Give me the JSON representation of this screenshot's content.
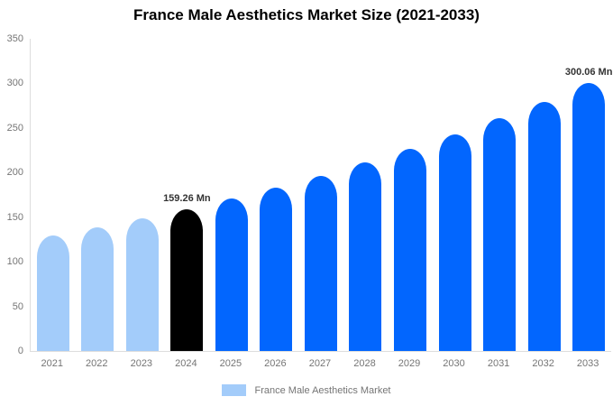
{
  "chart_data": {
    "type": "bar",
    "title": "France Male Aesthetics Market Size (2021-2033)",
    "categories": [
      "2021",
      "2022",
      "2023",
      "2024",
      "2025",
      "2026",
      "2027",
      "2028",
      "2029",
      "2030",
      "2031",
      "2032",
      "2033"
    ],
    "values": [
      129,
      138.4,
      148.4,
      159.26,
      170.9,
      183.3,
      196.7,
      211,
      226.4,
      242.8,
      260.5,
      279.5,
      300.06
    ],
    "unit": "Mn",
    "xlabel": "",
    "ylabel": "",
    "ylim": [
      0,
      350
    ],
    "yticks": [
      0,
      50,
      100,
      150,
      200,
      250,
      300,
      350
    ],
    "grid": false,
    "legend": {
      "label": "France Male Aesthetics Market",
      "position": "bottom"
    },
    "bar_roles": [
      "historical",
      "historical",
      "historical",
      "base-year",
      "forecast",
      "forecast",
      "forecast",
      "forecast",
      "forecast",
      "forecast",
      "forecast",
      "forecast",
      "forecast"
    ],
    "role_colors": {
      "historical": "#A3CCFA",
      "base-year": "#000000",
      "forecast": "#0266FE"
    },
    "annotations": [
      {
        "category": "2024",
        "text": "159.26 Mn"
      },
      {
        "category": "2033",
        "text": "300.06 Mn"
      }
    ]
  },
  "colors": {
    "background": "#FFFFFF",
    "title_text": "#000000",
    "axis_label_text": "#757575",
    "axis_line": "#DDDDDD",
    "annotation_text": "#333333",
    "legend_swatch": "#A3CCFA"
  }
}
